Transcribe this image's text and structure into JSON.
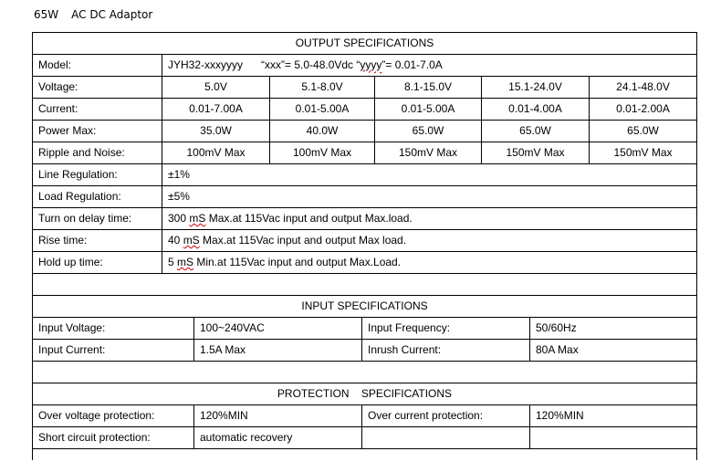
{
  "document_title": {
    "wattage": "65W",
    "name": "AC DC Adaptor"
  },
  "output": {
    "heading": "OUTPUT SPECIFICATIONS",
    "model": {
      "label": "Model:",
      "value": "JYH32-xxxyyyy",
      "note_xxx": "“xxx”= 5.0-48.0Vdc “",
      "note_yyyy": "yyyy",
      "note_end": "”= 0.01-7.0A"
    },
    "rows": [
      {
        "label": "Voltage:",
        "values": [
          "5.0V",
          "5.1-8.0V",
          "8.1-15.0V",
          "15.1-24.0V",
          "24.1-48.0V"
        ]
      },
      {
        "label": "Current:",
        "values": [
          "0.01-7.00A",
          "0.01-5.00A",
          "0.01-5.00A",
          "0.01-4.00A",
          "0.01-2.00A"
        ]
      },
      {
        "label": "Power Max:",
        "values": [
          "35.0W",
          "40.0W",
          "65.0W",
          "65.0W",
          "65.0W"
        ]
      },
      {
        "label": "Ripple and Noise:",
        "values": [
          "100mV Max",
          "100mV Max",
          "150mV Max",
          "150mV Max",
          "150mV Max"
        ]
      }
    ],
    "single_rows": [
      {
        "label": "Line Regulation:",
        "value": "±1%"
      },
      {
        "label": "Load Regulation:",
        "value": "±5%"
      }
    ],
    "timing_rows": [
      {
        "label": "Turn on delay time:",
        "pre": "300 ",
        "unit": "mS",
        "post": " Max.at 115Vac input and output Max.load."
      },
      {
        "label": "Rise time:",
        "pre": "40 ",
        "unit": "mS",
        "post": " Max.at 115Vac input and output Max load."
      },
      {
        "label": "Hold up time:",
        "pre": "5 ",
        "unit": "mS",
        "post": " Min.at 115Vac input and output Max.Load."
      }
    ]
  },
  "input": {
    "heading": "INPUT SPECIFICATIONS",
    "rows": [
      [
        "Input Voltage:",
        "100~240VAC",
        "Input Frequency:",
        "50/60Hz"
      ],
      [
        "Input Current:",
        "1.5A Max",
        "Inrush Current:",
        "80A Max"
      ]
    ]
  },
  "protection": {
    "heading": "PROTECTION    SPECIFICATIONS",
    "rows": [
      [
        "Over voltage protection:",
        "120%MIN",
        "Over current protection:",
        "120%MIN"
      ],
      [
        "Short circuit protection:",
        "automatic recovery",
        "",
        ""
      ]
    ]
  }
}
